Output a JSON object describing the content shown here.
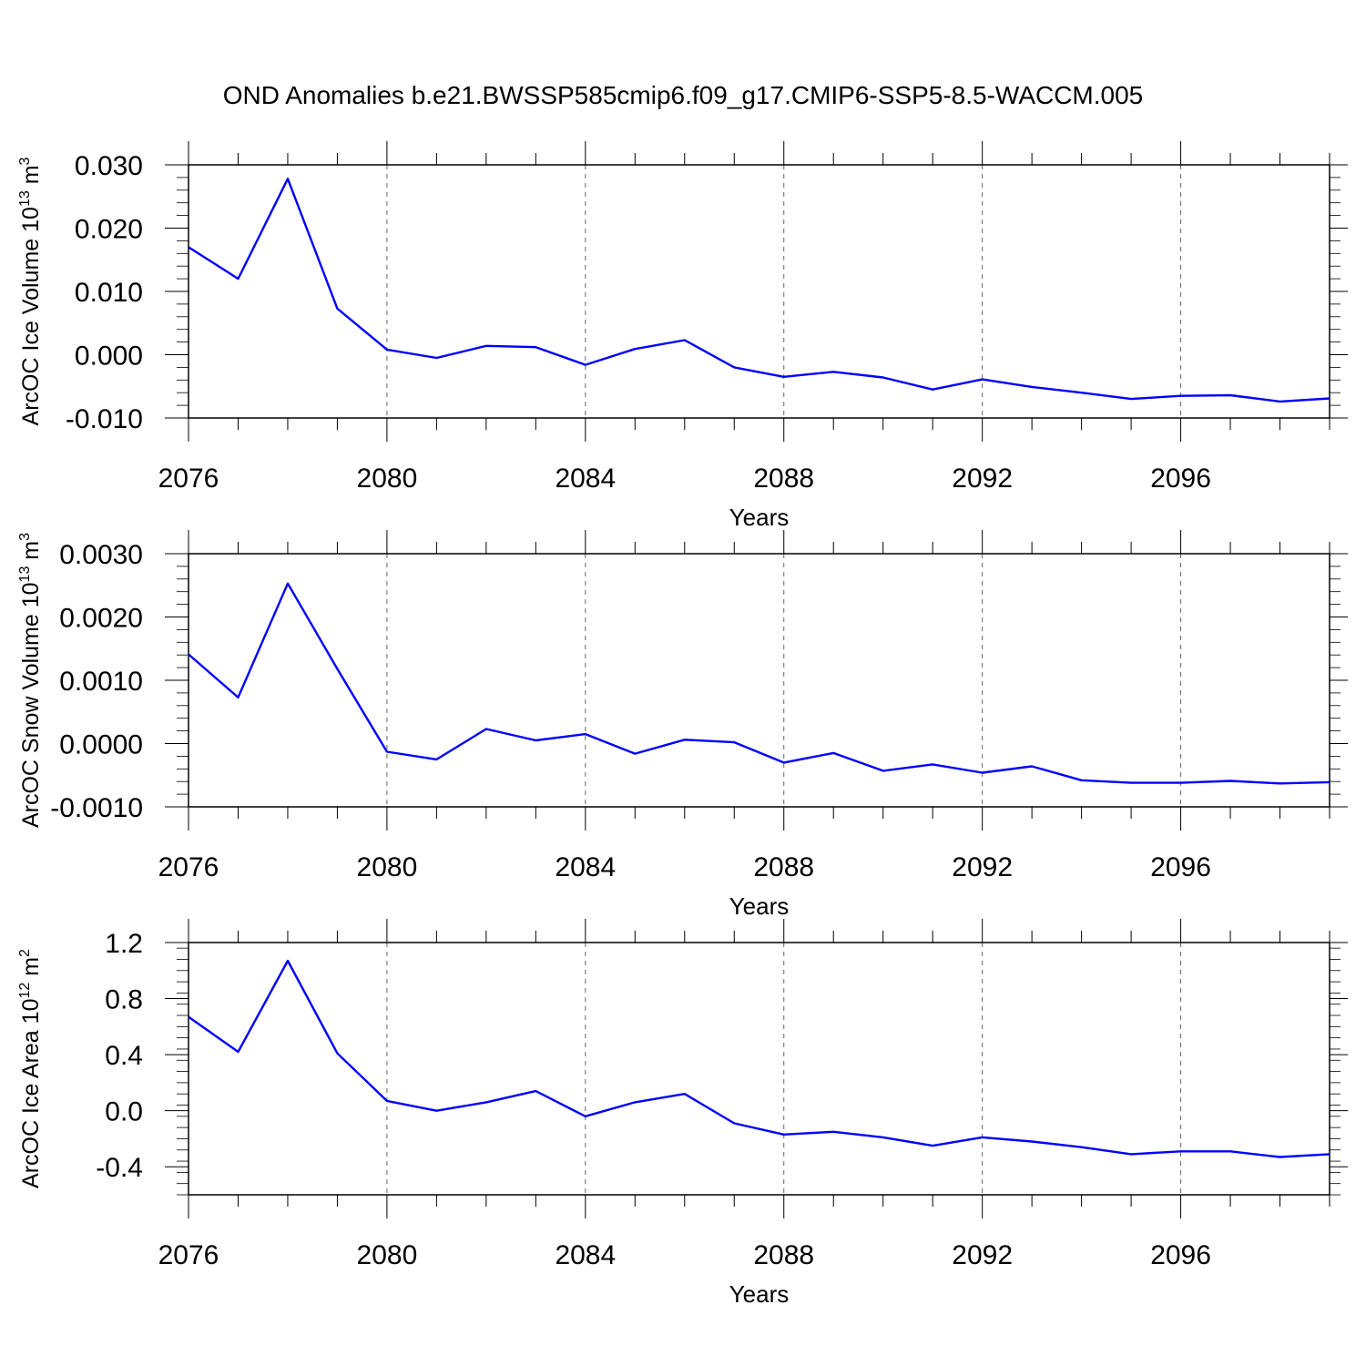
{
  "figure_title": "OND Anomalies b.e21.BWSSP585cmip6.f09_g17.CMIP6-SSP5-8.5-WACCM.005",
  "colors": {
    "line": "#0000ff",
    "axis": "#000000",
    "grid": "#666666"
  },
  "chart_data": [
    {
      "type": "line",
      "title": "",
      "xlabel": "Years",
      "ylabel_main": "ArcOC Ice Volume 10",
      "ylabel_exp": "13",
      "ylabel_unit": " m",
      "ylabel_unit_exp": "3",
      "xlim": [
        2076,
        2099
      ],
      "ylim": [
        -0.01,
        0.03
      ],
      "xticks": [
        "2076",
        "2080",
        "2084",
        "2088",
        "2092",
        "2096"
      ],
      "yticks": [
        "-0.010",
        "0.000",
        "0.010",
        "0.020",
        "0.030"
      ],
      "grid": "vertical-dashed",
      "series": [
        {
          "name": "Ice Volume",
          "x": [
            2076,
            2077,
            2078,
            2079,
            2080,
            2081,
            2082,
            2083,
            2084,
            2085,
            2086,
            2087,
            2088,
            2089,
            2090,
            2091,
            2092,
            2093,
            2094,
            2095,
            2096,
            2097,
            2098,
            2099
          ],
          "values": [
            0.017,
            0.012,
            0.0278,
            0.0073,
            0.0008,
            -0.0005,
            0.0014,
            0.0012,
            -0.0016,
            0.0009,
            0.0023,
            -0.002,
            -0.0035,
            -0.0027,
            -0.0036,
            -0.0055,
            -0.0039,
            -0.0051,
            -0.006,
            -0.007,
            -0.0065,
            -0.0064,
            -0.0074,
            -0.0069
          ]
        }
      ]
    },
    {
      "type": "line",
      "title": "",
      "xlabel": "Years",
      "ylabel_main": "ArcOC Snow Volume 10",
      "ylabel_exp": "13",
      "ylabel_unit": " m",
      "ylabel_unit_exp": "3",
      "xlim": [
        2076,
        2099
      ],
      "ylim": [
        -0.001,
        0.003
      ],
      "xticks": [
        "2076",
        "2080",
        "2084",
        "2088",
        "2092",
        "2096"
      ],
      "yticks": [
        "-0.0010",
        "0.0000",
        "0.0010",
        "0.0020",
        "0.0030"
      ],
      "grid": "vertical-dashed",
      "series": [
        {
          "name": "Snow Volume",
          "x": [
            2076,
            2077,
            2078,
            2079,
            2080,
            2081,
            2082,
            2083,
            2084,
            2085,
            2086,
            2087,
            2088,
            2089,
            2090,
            2091,
            2092,
            2093,
            2094,
            2095,
            2096,
            2097,
            2098,
            2099
          ],
          "values": [
            0.00141,
            0.00073,
            0.00253,
            0.00118,
            -0.00013,
            -0.00025,
            0.00023,
            5e-05,
            0.00015,
            -0.00016,
            6e-05,
            2e-05,
            -0.0003,
            -0.00015,
            -0.00043,
            -0.00033,
            -0.00046,
            -0.00036,
            -0.00058,
            -0.00062,
            -0.00062,
            -0.00059,
            -0.00063,
            -0.00061
          ]
        }
      ]
    },
    {
      "type": "line",
      "title": "",
      "xlabel": "Years",
      "ylabel_main": "ArcOC Ice Area 10",
      "ylabel_exp": "12",
      "ylabel_unit": " m",
      "ylabel_unit_exp": "2",
      "xlim": [
        2076,
        2099
      ],
      "ylim": [
        -0.6,
        1.2
      ],
      "xticks": [
        "2076",
        "2080",
        "2084",
        "2088",
        "2092",
        "2096"
      ],
      "yticks": [
        "-0.4",
        "0.0",
        "0.4",
        "0.8",
        "1.2"
      ],
      "grid": "vertical-dashed",
      "series": [
        {
          "name": "Ice Area",
          "x": [
            2076,
            2077,
            2078,
            2079,
            2080,
            2081,
            2082,
            2083,
            2084,
            2085,
            2086,
            2087,
            2088,
            2089,
            2090,
            2091,
            2092,
            2093,
            2094,
            2095,
            2096,
            2097,
            2098,
            2099
          ],
          "values": [
            0.67,
            0.42,
            1.07,
            0.41,
            0.07,
            0.0,
            0.06,
            0.14,
            -0.04,
            0.06,
            0.12,
            -0.09,
            -0.17,
            -0.15,
            -0.19,
            -0.25,
            -0.19,
            -0.22,
            -0.26,
            -0.31,
            -0.29,
            -0.29,
            -0.33,
            -0.31
          ]
        }
      ]
    }
  ]
}
